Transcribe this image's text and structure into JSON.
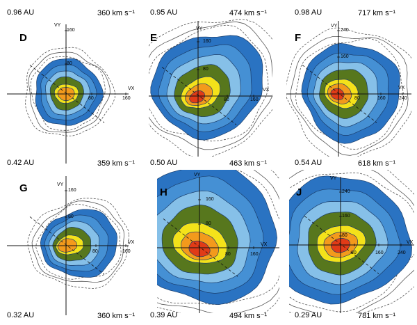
{
  "colors": {
    "outer_blue": "#2a73c2",
    "mid_blue": "#4590d4",
    "light_blue": "#86c0e8",
    "green": "#57771d",
    "yellow": "#f4e21a",
    "orange": "#f39a1c",
    "red": "#e13b17",
    "axis": "#111111",
    "dashed_contour": "#555555"
  },
  "panels": [
    {
      "letter": "D",
      "distance": "0.96 AU",
      "speed": "360 km s⁻¹",
      "x_label": "VX",
      "y_label": "VY",
      "x_tick_labels": [
        "80",
        "160"
      ],
      "y_tick_labels": [
        "80",
        "160"
      ]
    },
    {
      "letter": "E",
      "distance": "0.95 AU",
      "speed": "474 km s⁻¹",
      "x_label": "VX",
      "y_label": "VY",
      "x_tick_labels": [
        "80",
        "160"
      ],
      "y_tick_labels": [
        "80",
        "160"
      ]
    },
    {
      "letter": "F",
      "distance": "0.98 AU",
      "speed": "717 km s⁻¹",
      "x_label": "VX",
      "y_label": "VY",
      "x_tick_labels": [
        "80",
        "160",
        "240"
      ],
      "y_tick_labels": [
        "160",
        "240"
      ]
    },
    {
      "letter": "G",
      "distance": "0.42 AU",
      "speed": "359 km s⁻¹",
      "x_label": "VX",
      "y_label": "VY",
      "x_tick_labels": [
        "80",
        "160"
      ],
      "y_tick_labels": [
        "80",
        "160"
      ]
    },
    {
      "letter": "H",
      "distance": "0.50 AU",
      "speed": "463 km s⁻¹",
      "x_label": "VX",
      "y_label": "VY",
      "x_tick_labels": [
        "80",
        "160"
      ],
      "y_tick_labels": [
        "80",
        "160"
      ]
    },
    {
      "letter": "J",
      "distance": "0.54 AU",
      "speed": "618 km s⁻¹",
      "x_label": "VX",
      "y_label": "VY",
      "x_tick_labels": [
        "80",
        "160",
        "240"
      ],
      "y_tick_labels": [
        "80",
        "160",
        "240"
      ]
    }
  ],
  "bottom_labels": [
    {
      "distance": "0.32 AU",
      "speed": "360 km s⁻¹"
    },
    {
      "distance": "0.39 AU",
      "speed": "494 km s⁻¹"
    },
    {
      "distance": "0.29 AU",
      "speed": "781 km s⁻¹"
    }
  ]
}
